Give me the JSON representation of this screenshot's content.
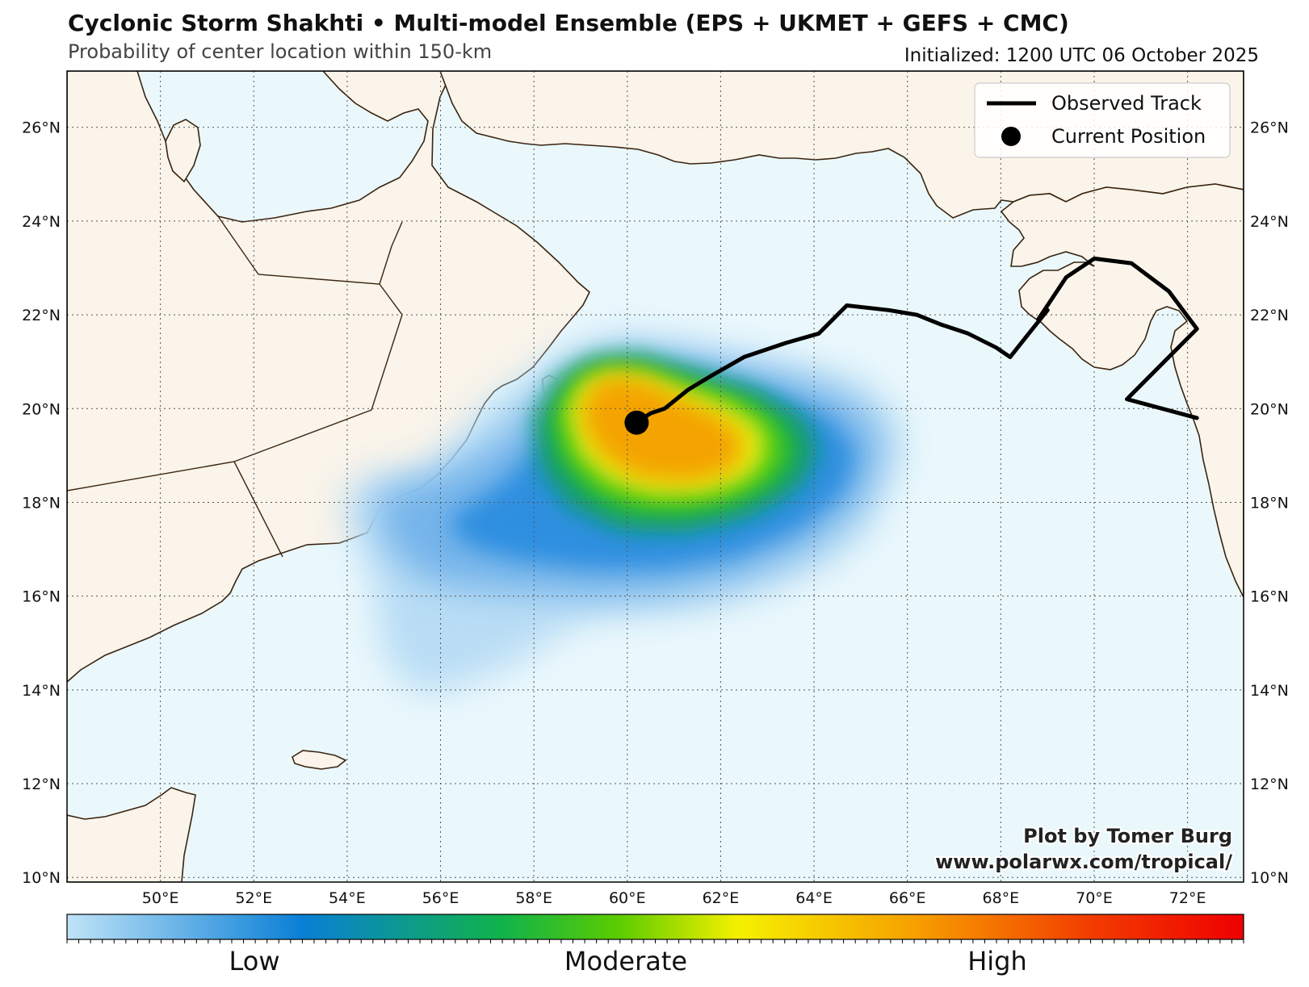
{
  "header": {
    "title": "Cyclonic Storm Shakhti • Multi-model Ensemble (EPS + UKMET + GEFS + CMC)",
    "subtitle": "Probability of center location within 150-km",
    "initialized": "Initialized: 1200 UTC 06 October 2025"
  },
  "map": {
    "lon_range": [
      48.0,
      73.2
    ],
    "lat_range": [
      9.9,
      27.2
    ],
    "lon_ticks": [
      "50°E",
      "52°E",
      "54°E",
      "56°E",
      "58°E",
      "60°E",
      "62°E",
      "64°E",
      "66°E",
      "68°E",
      "70°E",
      "72°E"
    ],
    "lat_ticks": [
      "10°N",
      "12°N",
      "14°N",
      "16°N",
      "18°N",
      "20°N",
      "22°N",
      "24°N",
      "26°N"
    ],
    "ocean_color": "#eaf8fc",
    "land_color": "#faf4ea",
    "coast_color": "#3a2410"
  },
  "legend": {
    "track_label": "Observed Track",
    "position_label": "Current Position"
  },
  "current_position": {
    "lon": 60.2,
    "lat": 19.7
  },
  "observed_track": [
    [
      72.2,
      19.8
    ],
    [
      70.7,
      20.2
    ],
    [
      72.2,
      21.7
    ],
    [
      71.6,
      22.5
    ],
    [
      70.8,
      23.1
    ],
    [
      70.0,
      23.2
    ],
    [
      69.4,
      22.8
    ],
    [
      68.8,
      21.9
    ],
    [
      69.0,
      22.1
    ],
    [
      68.6,
      21.6
    ],
    [
      68.2,
      21.1
    ],
    [
      67.9,
      21.3
    ],
    [
      67.3,
      21.6
    ],
    [
      66.7,
      21.8
    ],
    [
      66.2,
      22.0
    ],
    [
      65.6,
      22.1
    ],
    [
      64.7,
      22.2
    ],
    [
      64.1,
      21.6
    ],
    [
      63.4,
      21.4
    ],
    [
      62.5,
      21.1
    ],
    [
      61.8,
      20.7
    ],
    [
      61.3,
      20.4
    ],
    [
      60.8,
      20.0
    ],
    [
      60.5,
      19.9
    ],
    [
      60.2,
      19.7
    ]
  ],
  "colorbar": {
    "labels": [
      "Low",
      "Moderate",
      "High"
    ],
    "colors": [
      "#bfe3f7",
      "#0a7fd6",
      "#10b34a",
      "#f5f000",
      "#f7a000",
      "#f23c00",
      "#ee0000"
    ]
  },
  "credit": {
    "line1": "Plot by Tomer Burg",
    "line2": "www.polarwx.com/tropical/"
  }
}
